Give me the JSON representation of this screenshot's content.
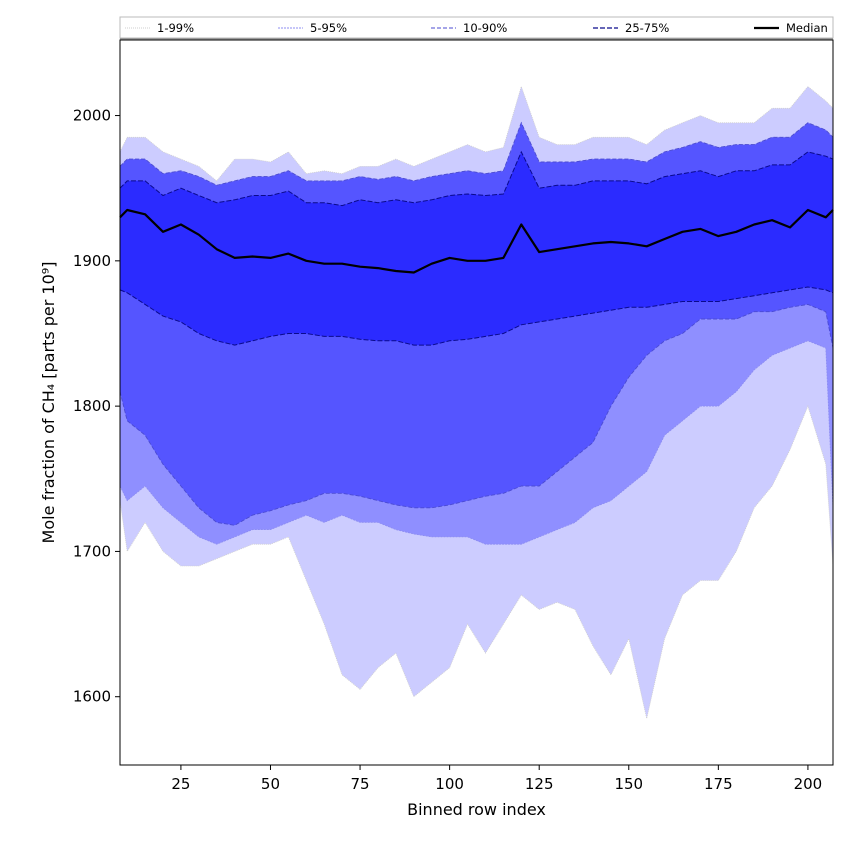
{
  "chart_data": {
    "type": "area",
    "xlabel": "Binned row index",
    "ylabel": "Mole fraction of CH₄ [parts per 10⁹]",
    "xlim": [
      8,
      207
    ],
    "ylim": [
      1553,
      2052
    ],
    "x_ticks": [
      25,
      50,
      75,
      100,
      125,
      150,
      175,
      200
    ],
    "y_ticks": [
      1600,
      1700,
      1800,
      1900,
      2000
    ],
    "grid": false,
    "legend_position": "top",
    "x": [
      8,
      10,
      15,
      20,
      25,
      30,
      35,
      40,
      45,
      50,
      55,
      60,
      65,
      70,
      75,
      80,
      85,
      90,
      95,
      100,
      105,
      110,
      115,
      120,
      125,
      130,
      135,
      140,
      145,
      150,
      155,
      160,
      165,
      170,
      175,
      180,
      185,
      190,
      195,
      200,
      205,
      207
    ],
    "series": [
      {
        "name": "1-99%",
        "lower": [
          1735,
          1700,
          1720,
          1700,
          1690,
          1690,
          1695,
          1700,
          1705,
          1705,
          1710,
          1680,
          1650,
          1615,
          1605,
          1620,
          1630,
          1600,
          1610,
          1620,
          1650,
          1630,
          1650,
          1670,
          1660,
          1665,
          1660,
          1635,
          1615,
          1640,
          1585,
          1640,
          1670,
          1680,
          1680,
          1700,
          1730,
          1745,
          1770,
          1800,
          1760,
          1690
        ],
        "upper": [
          1975,
          1985,
          1985,
          1975,
          1970,
          1965,
          1955,
          1970,
          1970,
          1968,
          1975,
          1960,
          1962,
          1960,
          1965,
          1965,
          1970,
          1965,
          1970,
          1975,
          1980,
          1975,
          1978,
          2020,
          1985,
          1980,
          1980,
          1985,
          1985,
          1985,
          1980,
          1990,
          1995,
          2000,
          1995,
          1995,
          1995,
          2005,
          2005,
          2020,
          2010,
          2005
        ]
      },
      {
        "name": "5-95%",
        "lower": [
          1745,
          1735,
          1745,
          1730,
          1720,
          1710,
          1705,
          1710,
          1715,
          1715,
          1720,
          1725,
          1720,
          1725,
          1720,
          1720,
          1715,
          1712,
          1710,
          1710,
          1710,
          1705,
          1705,
          1705,
          1710,
          1715,
          1720,
          1730,
          1735,
          1745,
          1755,
          1780,
          1790,
          1800,
          1800,
          1810,
          1825,
          1835,
          1840,
          1845,
          1840,
          1730
        ]
      },
      {
        "name": "10-90%",
        "lower": [
          1810,
          1790,
          1780,
          1760,
          1745,
          1730,
          1720,
          1718,
          1725,
          1728,
          1732,
          1735,
          1740,
          1740,
          1738,
          1735,
          1732,
          1730,
          1730,
          1732,
          1735,
          1738,
          1740,
          1745,
          1745,
          1755,
          1765,
          1775,
          1800,
          1820,
          1835,
          1845,
          1850,
          1860,
          1860,
          1860,
          1865,
          1865,
          1868,
          1870,
          1865,
          1840
        ],
        "upper": [
          1965,
          1970,
          1970,
          1960,
          1962,
          1958,
          1952,
          1955,
          1958,
          1958,
          1962,
          1955,
          1955,
          1955,
          1958,
          1956,
          1958,
          1955,
          1958,
          1960,
          1962,
          1960,
          1962,
          1995,
          1968,
          1968,
          1968,
          1970,
          1970,
          1970,
          1968,
          1975,
          1978,
          1982,
          1978,
          1980,
          1980,
          1985,
          1985,
          1995,
          1990,
          1985
        ]
      },
      {
        "name": "25-75%",
        "lower": [
          1880,
          1878,
          1870,
          1862,
          1858,
          1850,
          1845,
          1842,
          1845,
          1848,
          1850,
          1850,
          1848,
          1848,
          1846,
          1845,
          1845,
          1842,
          1842,
          1845,
          1846,
          1848,
          1850,
          1856,
          1858,
          1860,
          1862,
          1864,
          1866,
          1868,
          1868,
          1870,
          1872,
          1872,
          1872,
          1874,
          1876,
          1878,
          1880,
          1882,
          1880,
          1878
        ],
        "upper": [
          1950,
          1955,
          1955,
          1945,
          1950,
          1945,
          1940,
          1942,
          1945,
          1945,
          1948,
          1940,
          1940,
          1938,
          1942,
          1940,
          1942,
          1940,
          1942,
          1945,
          1946,
          1945,
          1946,
          1975,
          1950,
          1952,
          1952,
          1955,
          1955,
          1955,
          1953,
          1958,
          1960,
          1962,
          1958,
          1962,
          1962,
          1966,
          1966,
          1975,
          1972,
          1970
        ]
      },
      {
        "name": "Median",
        "values": [
          1930,
          1935,
          1932,
          1920,
          1925,
          1918,
          1908,
          1902,
          1903,
          1902,
          1905,
          1900,
          1898,
          1898,
          1896,
          1895,
          1893,
          1892,
          1898,
          1902,
          1900,
          1900,
          1902,
          1925,
          1906,
          1908,
          1910,
          1912,
          1913,
          1912,
          1910,
          1915,
          1920,
          1922,
          1917,
          1920,
          1925,
          1928,
          1923,
          1935,
          1930,
          1935
        ]
      }
    ],
    "colors": {
      "band_1_99": "#ccccff",
      "band_5_95": "#8f8fff",
      "band_10_90": "#5555ff",
      "band_25_75": "#2b2bff",
      "band_inner": "#1c1cff",
      "edge_1_99": "#cfcfcf",
      "edge_5_95": "#8c8cf0",
      "edge_10_90": "#4b4bd2",
      "edge_25_75": "#0a0a8c",
      "median": "#000000"
    }
  }
}
